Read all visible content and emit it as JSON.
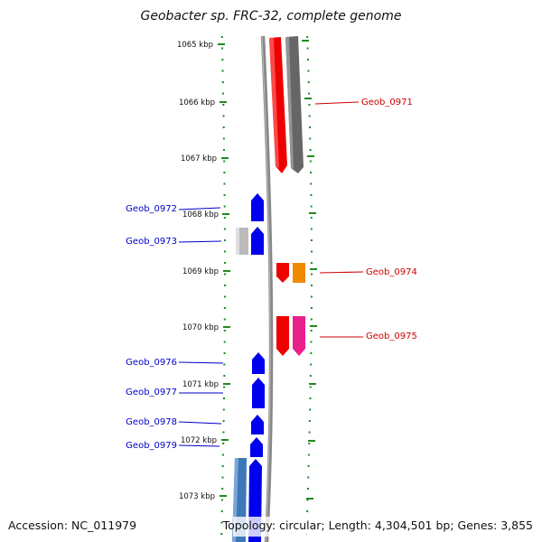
{
  "title": "Geobacter sp. FRC-32, complete genome",
  "accession": "Accession: NC_011979",
  "topology": "Topology: circular; Length: 4,304,501 bp; Genes: 3,855",
  "colors": {
    "backbone": "#8a8a8a",
    "ticks": "#1f8a1f",
    "forward_label": "#cc0000",
    "reverse_label": "#0000cc"
  },
  "axis": {
    "ticks_kbp": [
      1065,
      1066,
      1067,
      1068,
      1069,
      1070,
      1071,
      1072,
      1073
    ],
    "tick_labels": [
      "1065 kbp",
      "1066 kbp",
      "1067 kbp",
      "1068 kbp",
      "1069 kbp",
      "1070 kbp",
      "1071 kbp",
      "1072 kbp",
      "1073 kbp"
    ]
  },
  "genes": [
    {
      "name": "Geob_0971",
      "label_side": "right",
      "label_color": "#cc0000"
    },
    {
      "name": "Geob_0972",
      "label_side": "left",
      "label_color": "#0000cc"
    },
    {
      "name": "Geob_0973",
      "label_side": "left",
      "label_color": "#0000cc"
    },
    {
      "name": "Geob_0974",
      "label_side": "right",
      "label_color": "#cc0000"
    },
    {
      "name": "Geob_0975",
      "label_side": "right",
      "label_color": "#cc0000"
    },
    {
      "name": "Geob_0976",
      "label_side": "left",
      "label_color": "#0000cc"
    },
    {
      "name": "Geob_0977",
      "label_side": "left",
      "label_color": "#0000cc"
    },
    {
      "name": "Geob_0978",
      "label_side": "left",
      "label_color": "#0000cc"
    },
    {
      "name": "Geob_0979",
      "label_side": "left",
      "label_color": "#0000cc"
    }
  ]
}
